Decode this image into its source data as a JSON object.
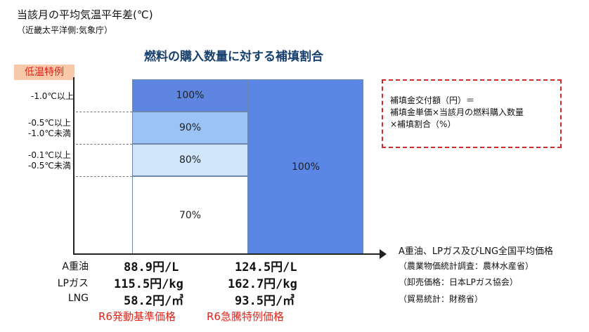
{
  "header": {
    "y_axis_title": "当該月の平均気温平年差(℃)",
    "y_axis_subtitle": "（近畿太平洋側:気象庁）",
    "chart_title": "燃料の購入数量に対する補填割合",
    "badge": "低温特例"
  },
  "y_labels": [
    {
      "lines": [
        "-1.0℃以上"
      ]
    },
    {
      "lines": [
        "-0.5℃以上",
        "-1.0℃未満"
      ]
    },
    {
      "lines": [
        "-0.1℃以上",
        "-0.5℃未満"
      ]
    }
  ],
  "chart_data": {
    "type": "bar",
    "columns": [
      {
        "name": "R6発動基準価格",
        "segments": [
          {
            "label": "100%",
            "value": 100,
            "color": "#5e86e0"
          },
          {
            "label": "90%",
            "value": 90,
            "color": "#9cc3f6"
          },
          {
            "label": "80%",
            "value": 80,
            "color": "#cfe6fb"
          },
          {
            "label": "70%",
            "value": 70,
            "color": "#ffffff"
          }
        ]
      },
      {
        "name": "R6急騰特例価格",
        "segments": [
          {
            "label": "100%",
            "value": 100,
            "color": "#5b86e6"
          }
        ]
      }
    ],
    "x_axis_title": "A重油、LPガス及びLNG全国平均価格"
  },
  "formula": {
    "lines": [
      "補填金交付額（円）＝",
      "補填金単価×当該月の燃料購入数量",
      "×補填割合（%）"
    ]
  },
  "prices": {
    "rows": [
      {
        "fuel": "A重油",
        "base": "88.9円/L",
        "special": "124.5円/L"
      },
      {
        "fuel": "LPガス",
        "base": "115.5円/kg",
        "special": "162.7円/kg"
      },
      {
        "fuel": "LNG",
        "base": "58.2円/㎥",
        "special": "93.5円/㎥"
      }
    ],
    "base_label": "R6発動基準価格",
    "special_label": "R6急騰特例価格"
  },
  "sources": {
    "lines": [
      "（農業物価統計調査：農林水産省）",
      "（卸売価格：日本LPガス協会）",
      "（貿易統計：財務省）"
    ]
  }
}
